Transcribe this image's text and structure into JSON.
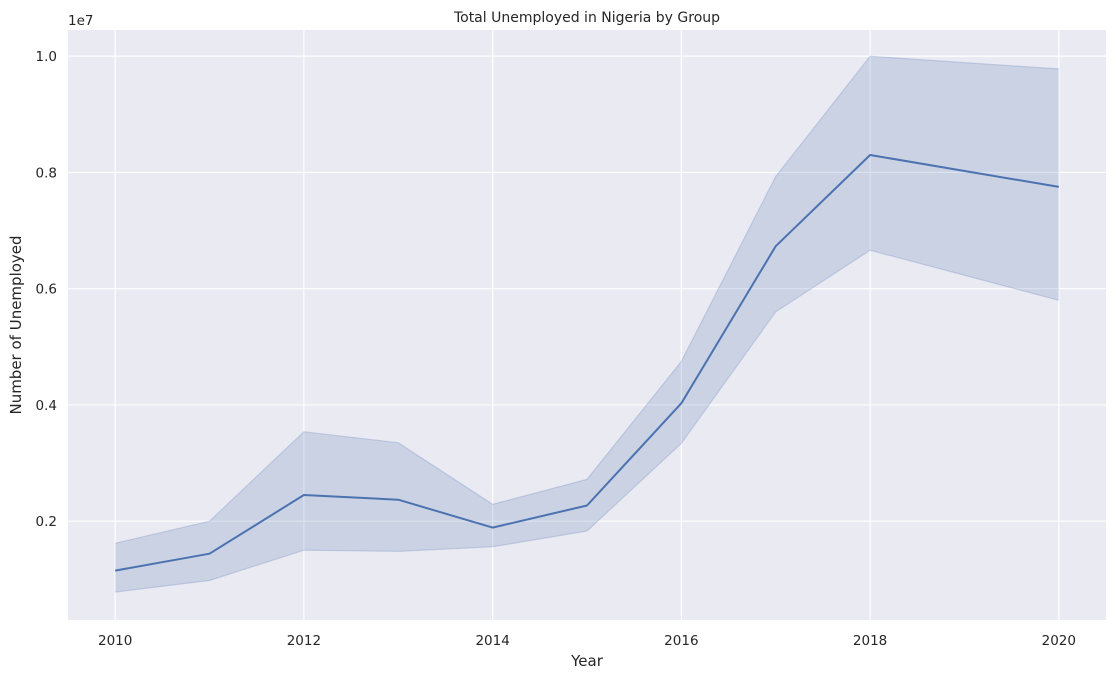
{
  "chart_data": {
    "type": "line",
    "title": "Total Unemployed in Nigeria by Group",
    "xlabel": "Year",
    "ylabel": "Number of Unemployed",
    "y_offset_label": "1e7",
    "y_scale_factor": 10000000,
    "xlim": [
      2009.5,
      2020.5
    ],
    "ylim": [
      0.03,
      1.045
    ],
    "x_ticks": [
      2010,
      2012,
      2014,
      2016,
      2018,
      2020
    ],
    "y_ticks": [
      0.2,
      0.4,
      0.6,
      0.8,
      1.0
    ],
    "y_tick_labels": [
      "0.2",
      "0.4",
      "0.6",
      "0.8",
      "1.0"
    ],
    "grid": true,
    "background_color": "#eaeaf2",
    "line_color": "#4c72b0",
    "series": [
      {
        "x": [
          2010,
          2011,
          2012,
          2013,
          2014,
          2015,
          2016,
          2017,
          2018,
          2020
        ],
        "values": [
          1150000,
          1440000,
          2450000,
          2370000,
          1890000,
          2270000,
          4030000,
          6730000,
          8300000,
          7750000
        ],
        "ci_upper": [
          1620000,
          2000000,
          3540000,
          3350000,
          2290000,
          2720000,
          4750000,
          7930000,
          10000000,
          9780000
        ],
        "ci_lower": [
          780000,
          980000,
          1500000,
          1480000,
          1560000,
          1830000,
          3340000,
          5600000,
          6660000,
          5800000
        ]
      }
    ]
  }
}
